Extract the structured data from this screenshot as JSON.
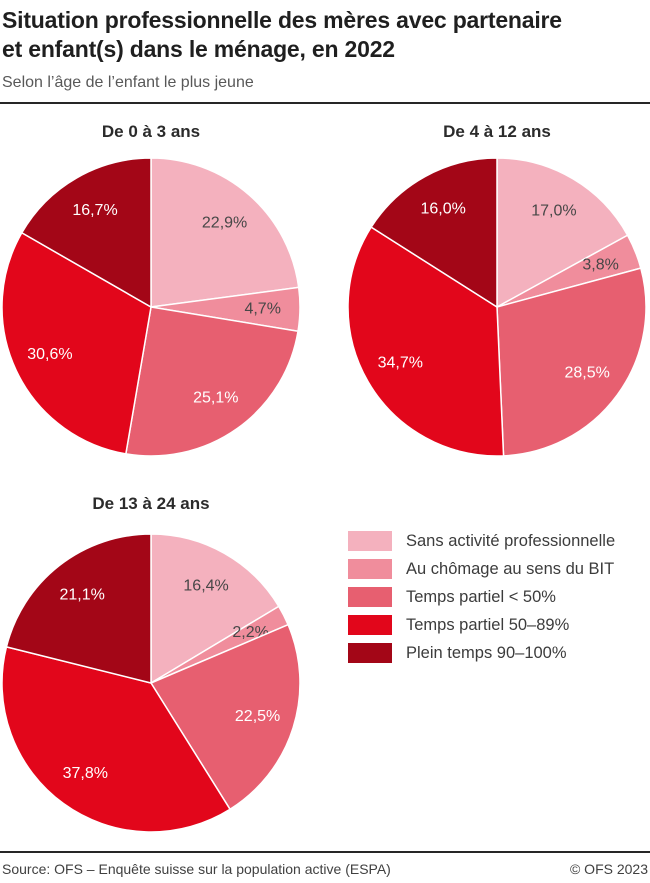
{
  "header": {
    "title_line1": "Situation professionnelle des mères avec partenaire",
    "title_line2": "et enfant(s) dans le ménage, en 2022",
    "subtitle": "Selon l’âge de l’enfant le plus jeune"
  },
  "palette": [
    {
      "name": "sans-activite",
      "color": "#f4b1be",
      "label_color": "#474747"
    },
    {
      "name": "au-chomage-bit",
      "color": "#f08d9c",
      "label_color": "#474747"
    },
    {
      "name": "temps-partiel-moins50",
      "color": "#e75f70",
      "label_color": "#ffffff"
    },
    {
      "name": "temps-partiel-50-89",
      "color": "#e2061b",
      "label_color": "#ffffff"
    },
    {
      "name": "plein-temps-90-100",
      "color": "#a30617",
      "label_color": "#ffffff"
    }
  ],
  "chart_data": [
    {
      "type": "pie",
      "title": "De 0 à 3 ans",
      "categories": [
        "Sans activité professionnelle",
        "Au chômage au sens du BIT",
        "Temps partiel < 50%",
        "Temps partiel 50–89%",
        "Plein temps 90–100%"
      ],
      "values": [
        22.9,
        4.7,
        25.1,
        30.6,
        16.7
      ],
      "value_labels": [
        "22,9%",
        "4,7%",
        "25,1%",
        "30,6%",
        "16,7%"
      ],
      "unit": "%",
      "start_angle_deg": 0,
      "direction": "clockwise"
    },
    {
      "type": "pie",
      "title": "De 4 à 12 ans",
      "categories": [
        "Sans activité professionnelle",
        "Au chômage au sens du BIT",
        "Temps partiel < 50%",
        "Temps partiel 50–89%",
        "Plein temps 90–100%"
      ],
      "values": [
        17.0,
        3.8,
        28.5,
        34.7,
        16.0
      ],
      "value_labels": [
        "17,0%",
        "3,8%",
        "28,5%",
        "34,7%",
        "16,0%"
      ],
      "unit": "%",
      "start_angle_deg": 0,
      "direction": "clockwise"
    },
    {
      "type": "pie",
      "title": "De 13 à 24 ans",
      "categories": [
        "Sans activité professionnelle",
        "Au chômage au sens du BIT",
        "Temps partiel < 50%",
        "Temps partiel 50–89%",
        "Plein temps 90–100%"
      ],
      "values": [
        16.4,
        2.2,
        22.5,
        37.8,
        21.1
      ],
      "value_labels": [
        "16,4%",
        "2,2%",
        "22,5%",
        "37,8%",
        "21,1%"
      ],
      "unit": "%",
      "start_angle_deg": 0,
      "direction": "clockwise"
    }
  ],
  "legend": {
    "entries": [
      {
        "label": "Sans activité professionnelle"
      },
      {
        "label": "Au chômage au sens du BIT"
      },
      {
        "label": "Temps partiel < 50%"
      },
      {
        "label": "Temps partiel 50–89%"
      },
      {
        "label": "Plein temps 90–100%"
      }
    ]
  },
  "footer": {
    "source": "Source: OFS – Enquête suisse sur la population active (ESPA)",
    "copyright": "© OFS 2023"
  }
}
